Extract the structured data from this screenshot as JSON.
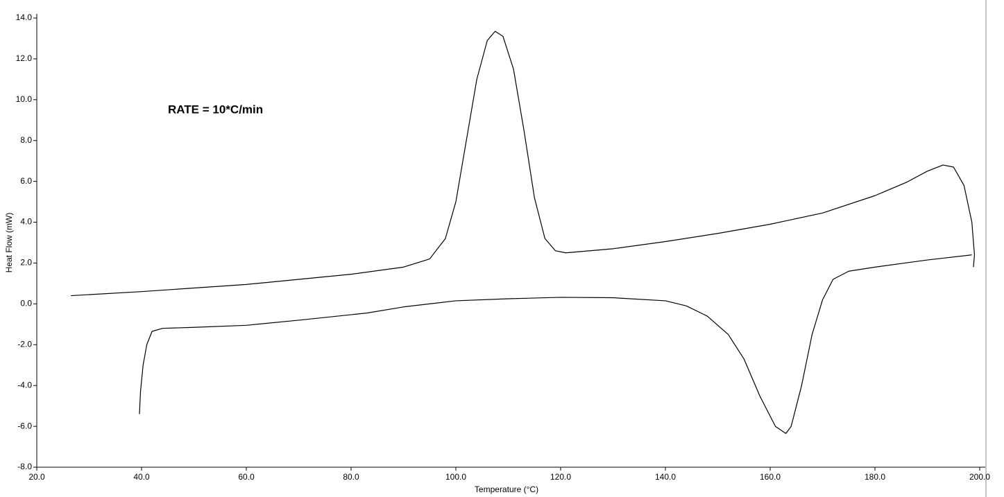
{
  "chart_data": {
    "type": "line",
    "x_label": "Temperature (°C)",
    "y_label": "Heat Flow (mW)",
    "annotation": "RATE = 10*C/min",
    "xlim": [
      20,
      200
    ],
    "ylim": [
      -8,
      14
    ],
    "xticks": [
      {
        "value": 20,
        "label": "20.0"
      },
      {
        "value": 40,
        "label": "40.0"
      },
      {
        "value": 60,
        "label": "60.0"
      },
      {
        "value": 80,
        "label": "80.0"
      },
      {
        "value": 100,
        "label": "100.0"
      },
      {
        "value": 120,
        "label": "120.0"
      },
      {
        "value": 140,
        "label": "140.0"
      },
      {
        "value": 160,
        "label": "160.0"
      },
      {
        "value": 180,
        "label": "180.0"
      },
      {
        "value": 200,
        "label": "200.0"
      }
    ],
    "yticks": [
      {
        "value": -8,
        "label": "-8.0"
      },
      {
        "value": -6,
        "label": "-6.0"
      },
      {
        "value": -4,
        "label": "-4.0"
      },
      {
        "value": -2,
        "label": "-2.0"
      },
      {
        "value": 0,
        "label": "0.0"
      },
      {
        "value": 2,
        "label": "2.0"
      },
      {
        "value": 4,
        "label": "4.0"
      },
      {
        "value": 6,
        "label": "6.0"
      },
      {
        "value": 8,
        "label": "8.0"
      },
      {
        "value": 10,
        "label": "10.0"
      },
      {
        "value": 12,
        "label": "12.0"
      },
      {
        "value": 14,
        "label": "14.0"
      }
    ],
    "grid": false,
    "series": [
      {
        "color": "#000000",
        "x": [
          26.5,
          40,
          60,
          80,
          90,
          95,
          98,
          100,
          102,
          104,
          106,
          107.5,
          109,
          111,
          113,
          115,
          117,
          119,
          121,
          130,
          140,
          150,
          160,
          170,
          180,
          186,
          190,
          193,
          195,
          197,
          198.5,
          199,
          198.8
        ],
        "values": [
          0.4,
          0.6,
          0.95,
          1.45,
          1.8,
          2.2,
          3.2,
          5,
          8,
          11,
          12.9,
          13.35,
          13.1,
          11.5,
          8.5,
          5.2,
          3.2,
          2.6,
          2.5,
          2.7,
          3.05,
          3.45,
          3.9,
          4.45,
          5.3,
          5.95,
          6.5,
          6.8,
          6.7,
          5.8,
          4.0,
          2.4,
          1.8
        ]
      },
      {
        "color": "#000000",
        "x": [
          198.5,
          190,
          180,
          175,
          172,
          170,
          168,
          166,
          164,
          163,
          161,
          158,
          155,
          152,
          148,
          144,
          140,
          130,
          120,
          110,
          100,
          90,
          83,
          70,
          60,
          50,
          44,
          42,
          41,
          40.3,
          39.8,
          39.6
        ],
        "values": [
          2.4,
          2.15,
          1.8,
          1.6,
          1.2,
          0.2,
          -1.5,
          -4,
          -6,
          -6.35,
          -6,
          -4.5,
          -2.7,
          -1.5,
          -0.6,
          -0.1,
          0.15,
          0.3,
          0.32,
          0.25,
          0.15,
          -0.15,
          -0.45,
          -0.8,
          -1.05,
          -1.15,
          -1.2,
          -1.35,
          -2,
          -3,
          -4.3,
          -5.4
        ]
      }
    ]
  }
}
